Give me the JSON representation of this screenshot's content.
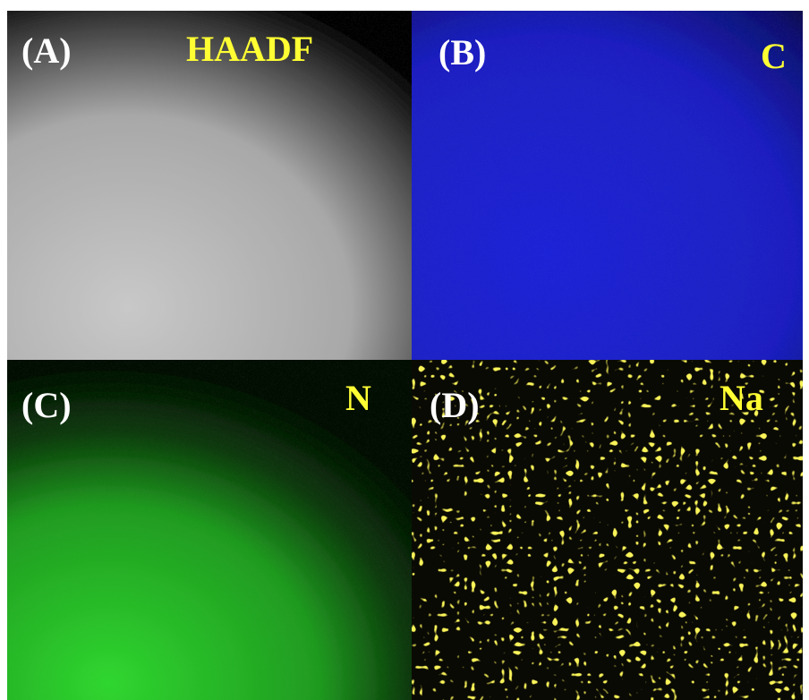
{
  "panels": [
    {
      "label": "(A)",
      "element": "HAADF"
    },
    {
      "label": "(B)",
      "element": "C"
    },
    {
      "label": "(C)",
      "element": "N"
    },
    {
      "label": "(D)",
      "element": "Na"
    }
  ]
}
